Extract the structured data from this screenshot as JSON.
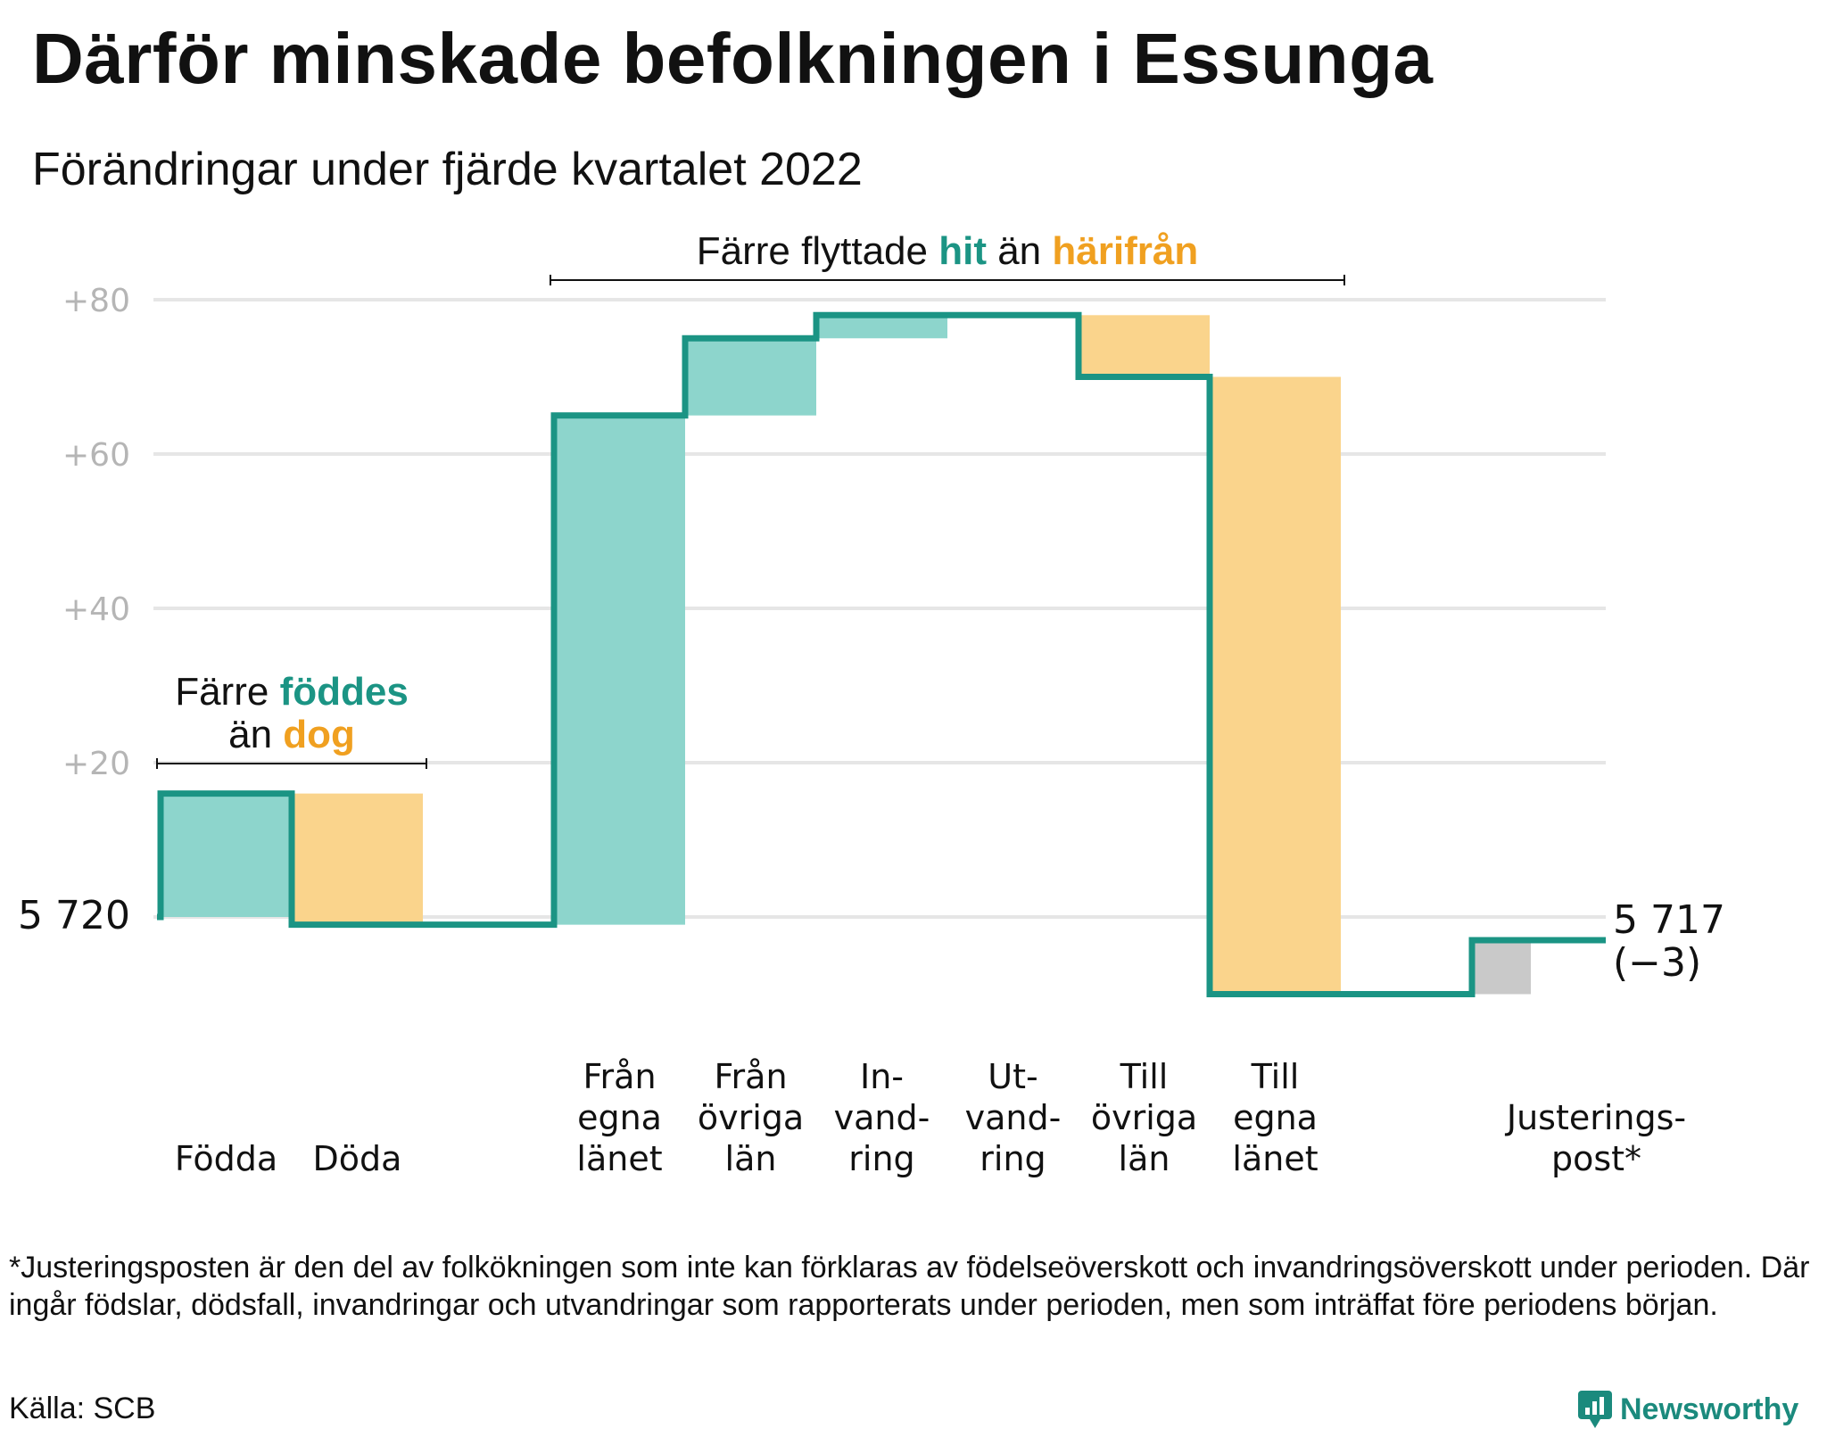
{
  "title": "Därför minskade befolkningen i Essunga",
  "subtitle": "Förändringar under fjärde kvartalet 2022",
  "chart_data": {
    "type": "bar",
    "subtype": "waterfall",
    "start_value": 5720,
    "start_label": "5 720",
    "end_value": 5717,
    "end_label": "5 717",
    "end_change_label": "(−3)",
    "y_axis": {
      "ylim": [
        -10,
        80
      ],
      "ticks": [
        20,
        40,
        60,
        80
      ],
      "tick_labels": [
        "+20",
        "+40",
        "+60",
        "+80"
      ]
    },
    "grid": true,
    "steps": [
      {
        "label": [
          "Födda"
        ],
        "value": 16,
        "kind": "in"
      },
      {
        "label": [
          "Döda"
        ],
        "value": -17,
        "kind": "out"
      },
      {
        "label": [],
        "value": 0,
        "kind": "gap"
      },
      {
        "label": [
          "Från",
          "egna",
          "länet"
        ],
        "value": 66,
        "kind": "in"
      },
      {
        "label": [
          "Från",
          "övriga",
          "län"
        ],
        "value": 10,
        "kind": "in"
      },
      {
        "label": [
          "In-",
          "vand-",
          "ring"
        ],
        "value": 3,
        "kind": "in"
      },
      {
        "label": [
          "Ut-",
          "vand-",
          "ring"
        ],
        "value": 0,
        "kind": "out"
      },
      {
        "label": [
          "Till",
          "övriga",
          "län"
        ],
        "value": -8,
        "kind": "out"
      },
      {
        "label": [
          "Till",
          "egna",
          "länet"
        ],
        "value": -80,
        "kind": "out"
      },
      {
        "label": [],
        "value": 0,
        "kind": "gap"
      },
      {
        "label": [
          "Justerings-",
          "post*"
        ],
        "value": 7,
        "kind": "adjust"
      }
    ],
    "annotations": [
      {
        "parts": [
          [
            "Färre ",
            "plain"
          ],
          [
            "föddes",
            "in"
          ]
        ],
        "parts2": [
          [
            "än ",
            "plain"
          ],
          [
            "dog",
            "out"
          ]
        ],
        "from_step": 0,
        "to_step": 1
      },
      {
        "parts": [
          [
            "Färre flyttade ",
            "plain"
          ],
          [
            "hit",
            "in"
          ],
          [
            " än ",
            "plain"
          ],
          [
            "härifrån",
            "out"
          ]
        ],
        "from_step": 3,
        "to_step": 8
      }
    ],
    "colors": {
      "in": "#8dd5cc",
      "out": "#fad48c",
      "adjust": "#c9c9c9",
      "line": "#1b9484",
      "in_text": "#1b9484",
      "out_text": "#f0a020",
      "grid": "#e6e6e6"
    }
  },
  "footnote": "*Justeringsposten är den del av folkökningen som inte kan förklaras av födelseöverskott och invandringsöverskott under perioden. Där ingår födslar, dödsfall, invandringar och utvandringar som rapporterats under perioden, men som inträffat före periodens början.",
  "source": "Källa: SCB",
  "brand": {
    "name": "Newsworthy",
    "icon": "newsworthy-logo-icon",
    "color": "#1b8a7d"
  }
}
